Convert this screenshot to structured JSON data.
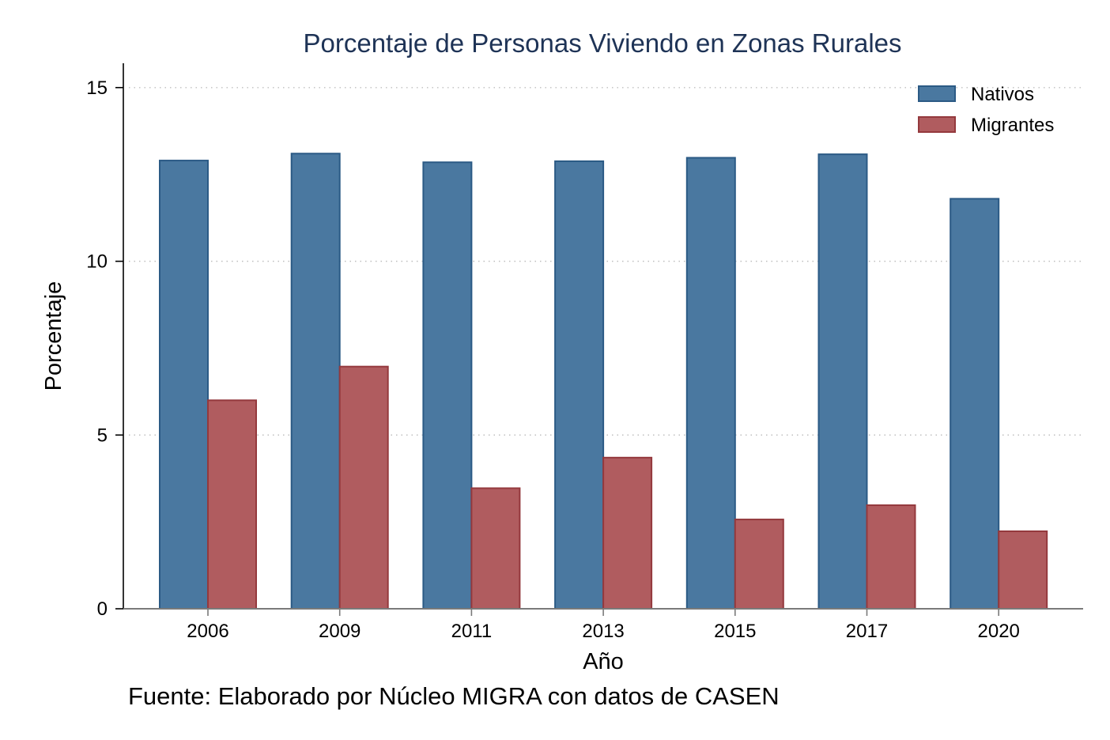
{
  "chart_data": {
    "type": "bar",
    "title": "Porcentaje de Personas Viviendo en Zonas Rurales",
    "xlabel": "Año",
    "ylabel": "Porcentaje",
    "note": "Fuente: Elaborado por Núcleo MIGRA con datos de CASEN",
    "categories": [
      "2006",
      "2009",
      "2011",
      "2013",
      "2015",
      "2017",
      "2020"
    ],
    "series": [
      {
        "name": "Nativos",
        "color": "#4a78a0",
        "stroke": "#2b5a85",
        "values": [
          12.9,
          13.1,
          12.85,
          12.88,
          12.98,
          13.08,
          11.8
        ]
      },
      {
        "name": "Migrantes",
        "color": "#b05c5f",
        "stroke": "#94393d",
        "values": [
          6.0,
          6.97,
          3.47,
          4.35,
          2.57,
          2.98,
          2.23
        ]
      }
    ],
    "ylim": [
      0,
      15.7
    ],
    "yticks": [
      0,
      5,
      10,
      15
    ],
    "grid": true,
    "legend_position": "top-right"
  },
  "colors": {
    "title": "#1e3356",
    "axis": "#000000",
    "grid": "#bfbfbf",
    "baseline": "#7a7a7a"
  }
}
